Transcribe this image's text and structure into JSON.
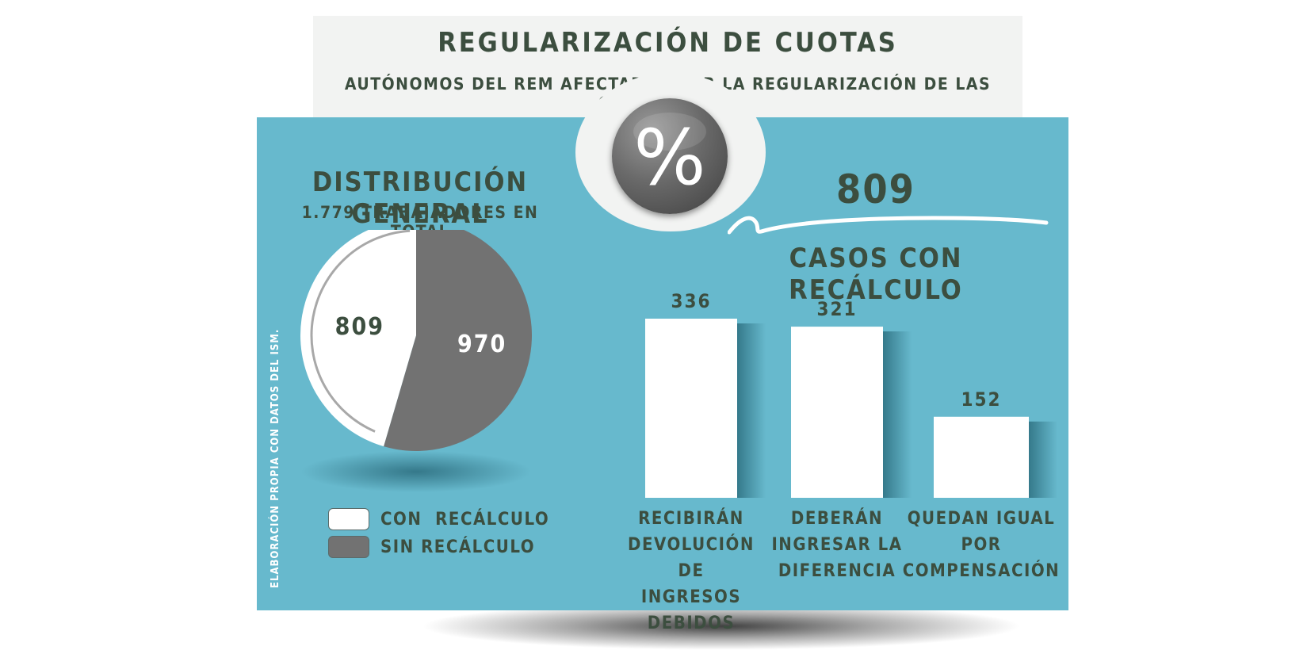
{
  "header": {
    "title": "REGULARIZACIÓN DE CUOTAS",
    "subtitle": "AUTÓNOMOS DEL REM AFECTADOS POR LA REGULARIZACIÓN DE LAS COTIZACIONES",
    "badge_symbol": "%"
  },
  "distribution": {
    "title": "DISTRIBUCIÓN GENERAL",
    "subtitle": "1.779 TRABAJADORES EN TOTAL"
  },
  "recalc": {
    "total": "809",
    "label": "CASOS CON RECÁLCULO"
  },
  "source_note": "ELABORACIÓN PROPIA CON DATOS DEL ISM.",
  "colors": {
    "panel": "#67b9cd",
    "title_box": "#f2f3f2",
    "text": "#3c4e3f",
    "con_recalculo": "#ffffff",
    "sin_recalculo": "#727272"
  },
  "chart_data": [
    {
      "type": "pie",
      "title": "DISTRIBUCIÓN GENERAL",
      "subtitle": "1.779 TRABAJADORES EN TOTAL",
      "categories": [
        "CON  RECÁLCULO",
        "SIN RECÁLCULO"
      ],
      "values": [
        809,
        970
      ],
      "colors": [
        "#ffffff",
        "#727272"
      ],
      "legend": "bottom"
    },
    {
      "type": "bar",
      "title": "CASOS CON RECÁLCULO",
      "categories": [
        [
          "RECIBIRÁN",
          "DEVOLUCIÓN DE",
          "INGRESOS DEBIDOS"
        ],
        [
          "DEBERÁN",
          "INGRESAR LA",
          "DIFERENCIA"
        ],
        [
          "QUEDAN IGUAL",
          "POR",
          "COMPENSACIÓN"
        ]
      ],
      "values": [
        336,
        321,
        152
      ],
      "grid": false
    }
  ]
}
